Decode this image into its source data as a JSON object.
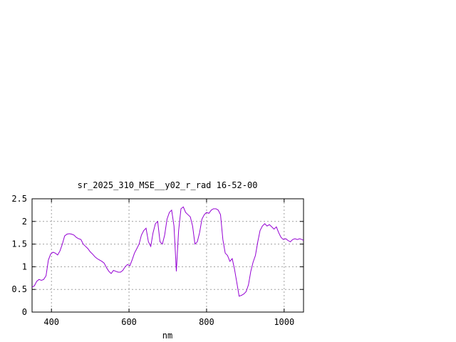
{
  "chart_data": {
    "type": "line",
    "title": "sr_2025_310_MSE__y02_r_rad 16-52-00",
    "xlabel": "nm",
    "ylabel": "",
    "xlim": [
      350,
      1050
    ],
    "ylim": [
      0,
      2.5
    ],
    "x_ticks": [
      400,
      600,
      800,
      1000
    ],
    "x_tick_labels": [
      "400",
      "600",
      "800",
      "1000"
    ],
    "y_ticks": [
      0,
      0.5,
      1,
      1.5,
      2,
      2.5
    ],
    "y_tick_labels": [
      "0",
      "0.5",
      "1",
      "1.5",
      "2",
      "2.5"
    ],
    "grid": true,
    "series": [
      {
        "color": "#9400d3",
        "x": [
          350,
          356,
          362,
          368,
          374,
          380,
          386,
          392,
          398,
          404,
          410,
          416,
          422,
          428,
          434,
          440,
          446,
          452,
          458,
          464,
          470,
          476,
          482,
          488,
          494,
          500,
          506,
          512,
          518,
          524,
          530,
          536,
          542,
          548,
          554,
          560,
          566,
          572,
          578,
          584,
          590,
          596,
          602,
          608,
          614,
          620,
          626,
          632,
          638,
          644,
          650,
          656,
          662,
          668,
          674,
          680,
          686,
          692,
          698,
          704,
          710,
          716,
          722,
          728,
          734,
          740,
          746,
          752,
          758,
          764,
          770,
          776,
          782,
          788,
          794,
          800,
          806,
          812,
          818,
          824,
          830,
          836,
          842,
          848,
          854,
          860,
          866,
          872,
          878,
          884,
          890,
          896,
          902,
          908,
          914,
          920,
          926,
          932,
          938,
          944,
          950,
          956,
          962,
          968,
          974,
          980,
          986,
          992,
          998,
          1004,
          1010,
          1016,
          1022,
          1028,
          1034,
          1040,
          1046,
          1050
        ],
        "y": [
          0.55,
          0.58,
          0.68,
          0.72,
          0.7,
          0.72,
          0.8,
          1.15,
          1.28,
          1.32,
          1.3,
          1.26,
          1.35,
          1.5,
          1.68,
          1.72,
          1.73,
          1.72,
          1.7,
          1.65,
          1.62,
          1.6,
          1.5,
          1.45,
          1.4,
          1.33,
          1.28,
          1.22,
          1.18,
          1.15,
          1.12,
          1.08,
          0.98,
          0.9,
          0.85,
          0.92,
          0.9,
          0.88,
          0.88,
          0.92,
          1.0,
          1.05,
          1.02,
          1.15,
          1.3,
          1.4,
          1.5,
          1.7,
          1.8,
          1.85,
          1.55,
          1.45,
          1.75,
          1.95,
          2.0,
          1.55,
          1.5,
          1.7,
          2.05,
          2.2,
          2.25,
          1.9,
          0.9,
          1.8,
          2.28,
          2.32,
          2.2,
          2.15,
          2.1,
          1.9,
          1.5,
          1.55,
          1.75,
          2.05,
          2.15,
          2.2,
          2.18,
          2.25,
          2.28,
          2.28,
          2.25,
          2.15,
          1.6,
          1.3,
          1.25,
          1.12,
          1.18,
          0.95,
          0.65,
          0.35,
          0.37,
          0.4,
          0.45,
          0.6,
          0.9,
          1.1,
          1.25,
          1.55,
          1.8,
          1.9,
          1.95,
          1.9,
          1.93,
          1.88,
          1.83,
          1.88,
          1.75,
          1.65,
          1.6,
          1.62,
          1.58,
          1.55,
          1.6,
          1.62,
          1.6,
          1.62,
          1.6,
          1.58
        ]
      }
    ]
  }
}
